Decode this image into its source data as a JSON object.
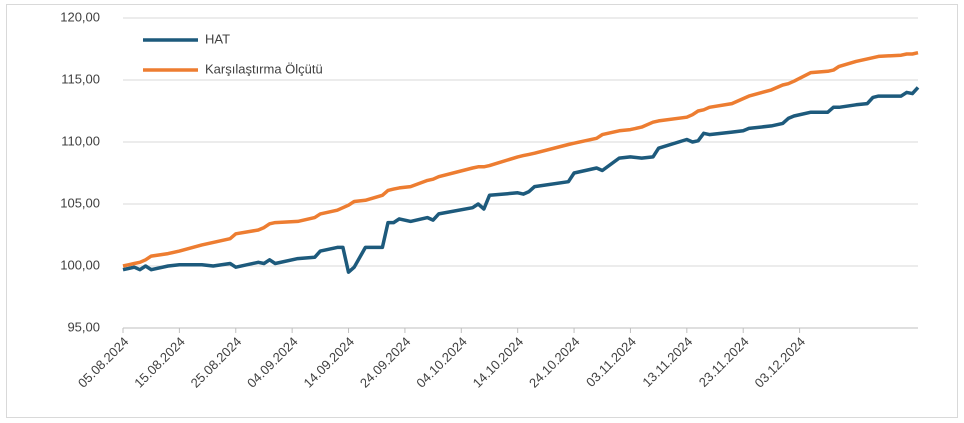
{
  "chart_data": {
    "type": "line",
    "x": [
      "05.08.2024",
      "07.08.2024",
      "08.08.2024",
      "09.08.2024",
      "10.08.2024",
      "13.08.2024",
      "15.08.2024",
      "19.08.2024",
      "21.08.2024",
      "24.08.2024",
      "25.08.2024",
      "29.08.2024",
      "30.08.2024",
      "31.08.2024",
      "01.09.2024",
      "05.09.2024",
      "08.09.2024",
      "09.09.2024",
      "12.09.2024",
      "13.09.2024",
      "14.09.2024",
      "15.09.2024",
      "17.09.2024",
      "20.09.2024",
      "21.09.2024",
      "22.09.2024",
      "23.09.2024",
      "25.09.2024",
      "28.09.2024",
      "29.09.2024",
      "30.09.2024",
      "06.10.2024",
      "07.10.2024",
      "08.10.2024",
      "09.10.2024",
      "14.10.2024",
      "15.10.2024",
      "16.10.2024",
      "17.10.2024",
      "23.10.2024",
      "24.10.2024",
      "28.10.2024",
      "29.10.2024",
      "01.11.2024",
      "03.11.2024",
      "05.11.2024",
      "07.11.2024",
      "08.11.2024",
      "13.11.2024",
      "14.11.2024",
      "15.11.2024",
      "16.11.2024",
      "17.11.2024",
      "21.11.2024",
      "23.11.2024",
      "24.11.2024",
      "28.11.2024",
      "30.11.2024",
      "01.12.2024",
      "02.12.2024",
      "05.12.2024",
      "08.12.2024",
      "09.12.2024",
      "10.12.2024",
      "13.12.2024",
      "15.12.2024",
      "16.12.2024",
      "17.12.2024",
      "21.12.2024",
      "22.12.2024",
      "23.12.2024",
      "24.12.2024"
    ],
    "series": [
      {
        "name": "HAT",
        "color": "#1d5a7c",
        "values": [
          99.7,
          99.9,
          99.7,
          100.0,
          99.7,
          100.0,
          100.1,
          100.1,
          100.0,
          100.2,
          99.9,
          100.3,
          100.2,
          100.5,
          100.2,
          100.6,
          100.7,
          101.2,
          101.5,
          101.5,
          99.5,
          99.9,
          101.5,
          101.5,
          103.5,
          103.5,
          103.8,
          103.6,
          103.9,
          103.7,
          104.2,
          104.7,
          105.0,
          104.6,
          105.7,
          105.9,
          105.8,
          106.0,
          106.4,
          106.8,
          107.5,
          107.9,
          107.7,
          108.7,
          108.8,
          108.7,
          108.8,
          109.5,
          110.2,
          110.0,
          110.1,
          110.7,
          110.6,
          110.8,
          110.9,
          111.1,
          111.3,
          111.5,
          111.9,
          112.1,
          112.4,
          112.4,
          112.8,
          112.8,
          113.0,
          113.1,
          113.6,
          113.7,
          113.7,
          114.0,
          113.9,
          114.4
        ]
      },
      {
        "name": "Karşılaştırma Ölçütü",
        "color": "#ed7d31",
        "values": [
          100.0,
          100.2,
          100.3,
          100.5,
          100.8,
          101.0,
          101.2,
          101.7,
          101.9,
          102.2,
          102.6,
          102.9,
          103.1,
          103.4,
          103.5,
          103.6,
          103.9,
          104.2,
          104.5,
          104.7,
          104.9,
          105.2,
          105.3,
          105.7,
          106.1,
          106.2,
          106.3,
          106.4,
          106.9,
          107.0,
          107.2,
          107.9,
          108.0,
          108.0,
          108.1,
          108.8,
          108.9,
          109.0,
          109.1,
          109.8,
          109.9,
          110.3,
          110.6,
          110.9,
          111.0,
          111.2,
          111.6,
          111.7,
          112.0,
          112.2,
          112.5,
          112.6,
          112.8,
          113.1,
          113.5,
          113.7,
          114.2,
          114.6,
          114.7,
          114.9,
          115.6,
          115.7,
          115.8,
          116.1,
          116.5,
          116.7,
          116.8,
          116.9,
          117.0,
          117.1,
          117.1,
          117.2
        ]
      }
    ],
    "xlim": [
      "05.08.2024",
      "24.12.2024"
    ],
    "xticks": [
      "05.08.2024",
      "15.08.2024",
      "25.08.2024",
      "04.09.2024",
      "14.09.2024",
      "24.09.2024",
      "04.10.2024",
      "14.10.2024",
      "24.10.2024",
      "03.11.2024",
      "13.11.2024",
      "23.11.2024",
      "03.12.2024"
    ],
    "ylim": [
      95,
      120
    ],
    "yticks": [
      {
        "value": 95,
        "label": "95,00"
      },
      {
        "value": 100,
        "label": "100,00"
      },
      {
        "value": 105,
        "label": "105,00"
      },
      {
        "value": 110,
        "label": "110,00"
      },
      {
        "value": 115,
        "label": "115,00"
      },
      {
        "value": 120,
        "label": "120,00"
      }
    ],
    "grid": true,
    "legend": "top-left"
  }
}
